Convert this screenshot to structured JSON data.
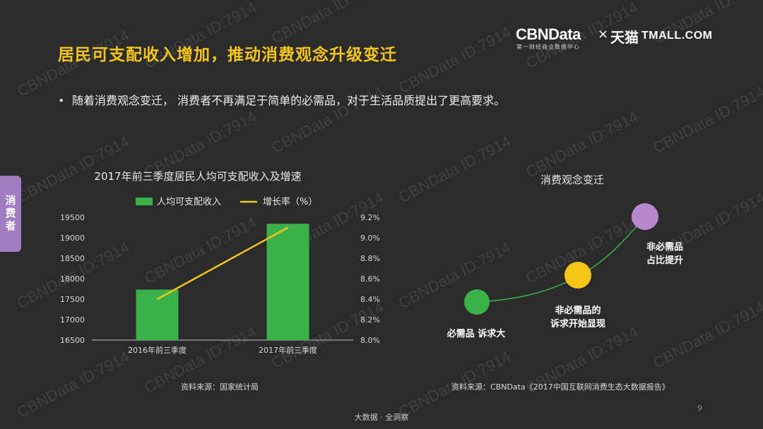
{
  "title": "居民可支配收入增加，推动消费观念升级变迁",
  "logo": {
    "brand": "CBNData",
    "tagline": "第一财经商业数据中心",
    "times": "×",
    "partner_cn": "天猫",
    "partner_en": "TMALL.COM"
  },
  "bullet": "随着消费观念变迁， 消费者不再满足于简单的必需品，对于生活品质提出了更高要求。",
  "side_tab": "消费者",
  "watermark": "CBNData ID:7914",
  "footer": "大数据 · 全洞察",
  "page_number": "9",
  "source_left": "资料来源：国家统计局",
  "source_right": "资料来源：CBNData《2017中国互联网消费生态大数据报告》",
  "colors": {
    "bar": "#3bb14a",
    "line": "#f5c518",
    "title": "#f5c518",
    "green_dot": "#3bb14a",
    "yellow_dot": "#f5c518",
    "purple_dot": "#b689cc",
    "tab": "#a07cc0"
  },
  "chart_data": [
    {
      "type": "bar",
      "title": "2017年前三季度居民人均可支配收入及增速",
      "categories": [
        "2016年前三季度",
        "2017年前三季度"
      ],
      "series": [
        {
          "name": "人均可支配收入",
          "type": "bar",
          "axis": "left",
          "values": [
            17735,
            19342
          ]
        },
        {
          "name": "增长率（%）",
          "type": "line",
          "axis": "right",
          "values": [
            8.4,
            9.1
          ]
        }
      ],
      "y_left": {
        "min": 16500,
        "max": 19500,
        "ticks": [
          "16500",
          "17000",
          "17500",
          "18000",
          "18500",
          "19000",
          "19500"
        ]
      },
      "y_right": {
        "min": 8.0,
        "max": 9.2,
        "ticks": [
          "8.0%",
          "8.2%",
          "8.4%",
          "8.6%",
          "8.8%",
          "9.0%",
          "9.2%"
        ]
      },
      "legend_position": "top",
      "grid": false
    },
    {
      "type": "diagram",
      "title": "消费观念变迁",
      "stages": [
        {
          "label": "必需品 诉求大",
          "color": "green"
        },
        {
          "label_line1": "非必需品的",
          "label_line2": "诉求开始显现",
          "color": "yellow"
        },
        {
          "label_line1": "非必需品",
          "label_line2": "占比提升",
          "color": "purple"
        }
      ]
    }
  ]
}
